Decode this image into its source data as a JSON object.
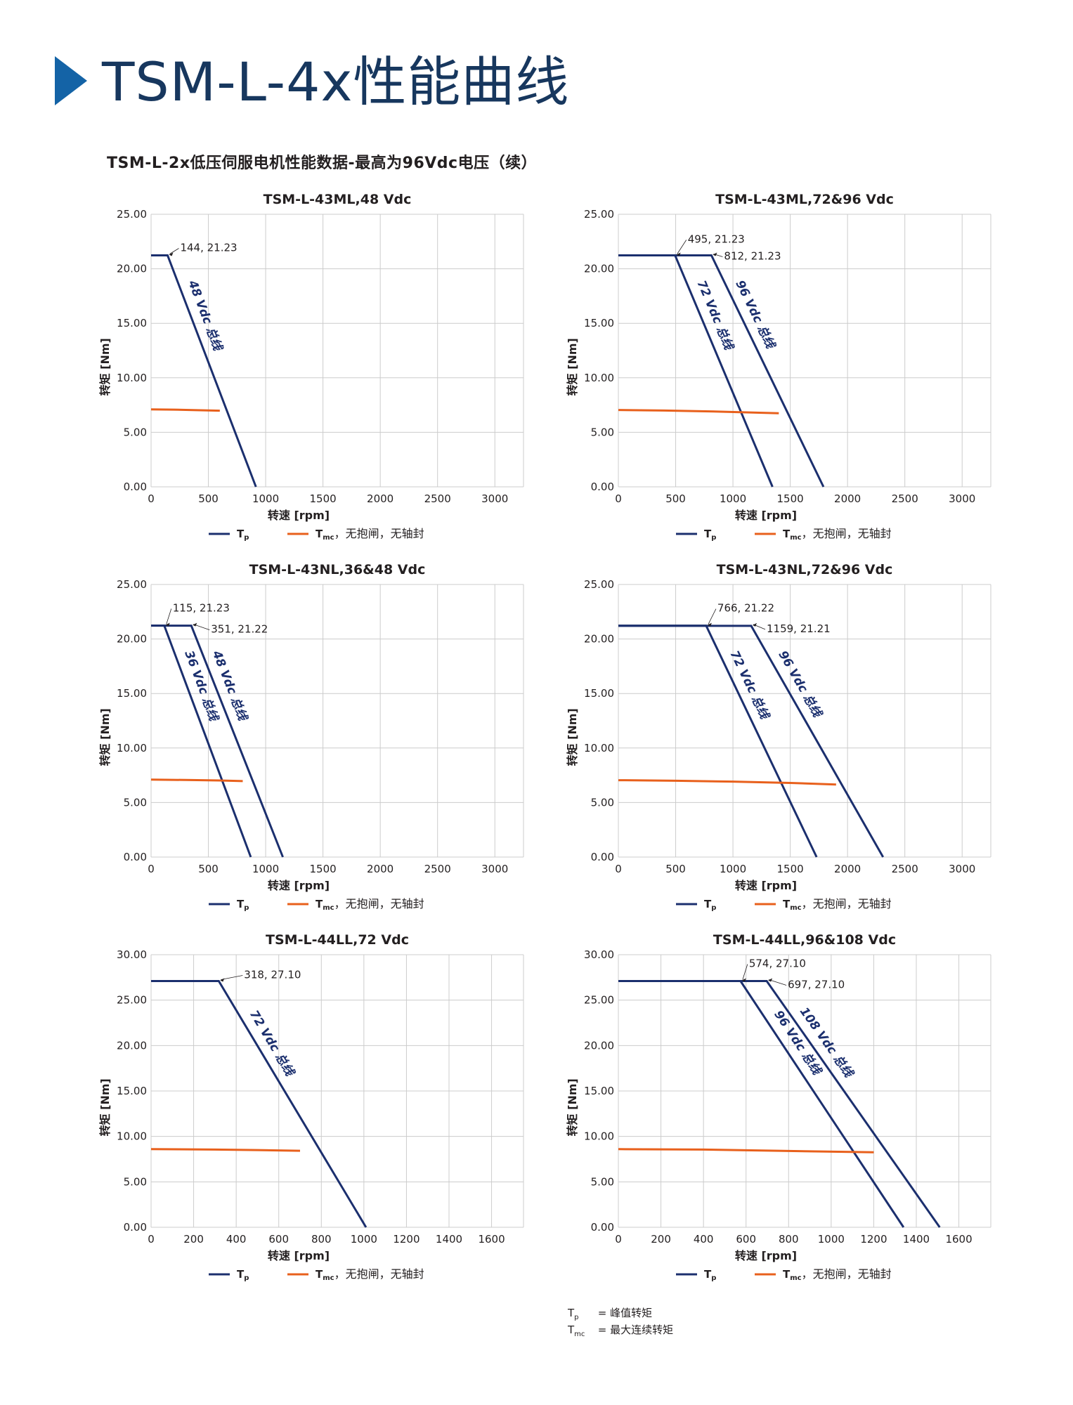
{
  "page": {
    "title": "TSM-L-4x性能曲线",
    "section_title": "TSM-L-2x低压伺服电机性能数据-最高为96Vdc电压（续）"
  },
  "colors": {
    "accent": "#1463a6",
    "tp_line": "#1b2f6e",
    "tmc_line": "#e8601c",
    "grid": "#cccccc"
  },
  "legend": {
    "tp_main": "T",
    "tp_sub": "p",
    "tmc_main": "T",
    "tmc_sub": "mc",
    "tmc_suffix": "，无抱闸，无轴封"
  },
  "footnote": {
    "tp_sym": "T",
    "tp_sub": "p",
    "tp_desc": "= 峰值转矩",
    "tmc_sym": "T",
    "tmc_sub": "mc",
    "tmc_desc": "= 最大连续转矩"
  },
  "chart_data": [
    {
      "type": "line",
      "title": "TSM-L-43ML,48 Vdc",
      "xlabel": "转速 [rpm]",
      "ylabel": "转矩 [Nm]",
      "xlim": [
        0,
        3250
      ],
      "ylim": [
        0,
        25
      ],
      "xticks": [
        0,
        500,
        1000,
        1500,
        2000,
        2500,
        3000
      ],
      "yticks": [
        "0.00",
        "5.00",
        "10.00",
        "15.00",
        "20.00",
        "25.00"
      ],
      "grid": true,
      "series": [
        {
          "kind": "tp",
          "name": "48 Vdc 总线",
          "x": [
            0,
            144,
            915
          ],
          "y": [
            21.23,
            21.23,
            0
          ]
        },
        {
          "kind": "tmc",
          "x": [
            0,
            200,
            400,
            600
          ],
          "y": [
            7.1,
            7.08,
            7.03,
            6.98
          ]
        }
      ],
      "annotations": [
        {
          "text": "144, 21.23",
          "x": 144,
          "y": 21.23
        }
      ]
    },
    {
      "type": "line",
      "title": "TSM-L-43ML,72&96 Vdc",
      "xlabel": "转速 [rpm]",
      "ylabel": "转矩 [Nm]",
      "xlim": [
        0,
        3250
      ],
      "ylim": [
        0,
        25
      ],
      "xticks": [
        0,
        500,
        1000,
        1500,
        2000,
        2500,
        3000
      ],
      "yticks": [
        "0.00",
        "5.00",
        "10.00",
        "15.00",
        "20.00",
        "25.00"
      ],
      "grid": true,
      "series": [
        {
          "kind": "tp",
          "name": "72 Vdc 总线",
          "x": [
            0,
            495,
            1345
          ],
          "y": [
            21.23,
            21.23,
            0
          ]
        },
        {
          "kind": "tp",
          "name": "96 Vdc 总线",
          "x": [
            0,
            812,
            1790
          ],
          "y": [
            21.23,
            21.23,
            0
          ]
        },
        {
          "kind": "tmc",
          "x": [
            0,
            400,
            800,
            1400
          ],
          "y": [
            7.05,
            7.0,
            6.92,
            6.75
          ]
        }
      ],
      "annotations": [
        {
          "text": "495, 21.23",
          "x": 495,
          "y": 21.23
        },
        {
          "text": "812, 21.23",
          "x": 812,
          "y": 21.23
        }
      ]
    },
    {
      "type": "line",
      "title": "TSM-L-43NL,36&48 Vdc",
      "xlabel": "转速 [rpm]",
      "ylabel": "转矩 [Nm]",
      "xlim": [
        0,
        3250
      ],
      "ylim": [
        0,
        25
      ],
      "xticks": [
        0,
        500,
        1000,
        1500,
        2000,
        2500,
        3000
      ],
      "yticks": [
        "0.00",
        "5.00",
        "10.00",
        "15.00",
        "20.00",
        "25.00"
      ],
      "grid": true,
      "series": [
        {
          "kind": "tp",
          "name": "36 Vdc 总线",
          "x": [
            0,
            115,
            870
          ],
          "y": [
            21.23,
            21.23,
            0
          ]
        },
        {
          "kind": "tp",
          "name": "48 Vdc 总线",
          "x": [
            0,
            351,
            1150
          ],
          "y": [
            21.22,
            21.22,
            0
          ]
        },
        {
          "kind": "tmc",
          "x": [
            0,
            300,
            600,
            800
          ],
          "y": [
            7.1,
            7.07,
            7.02,
            6.97
          ]
        }
      ],
      "annotations": [
        {
          "text": "115, 21.23",
          "x": 115,
          "y": 21.23
        },
        {
          "text": "351, 21.22",
          "x": 351,
          "y": 21.22
        }
      ]
    },
    {
      "type": "line",
      "title": "TSM-L-43NL,72&96 Vdc",
      "xlabel": "转速 [rpm]",
      "ylabel": "转矩 [Nm]",
      "xlim": [
        0,
        3250
      ],
      "ylim": [
        0,
        25
      ],
      "xticks": [
        0,
        500,
        1000,
        1500,
        2000,
        2500,
        3000
      ],
      "yticks": [
        "0.00",
        "5.00",
        "10.00",
        "15.00",
        "20.00",
        "25.00"
      ],
      "grid": true,
      "series": [
        {
          "kind": "tp",
          "name": "72 Vdc 总线",
          "x": [
            0,
            766,
            1730
          ],
          "y": [
            21.22,
            21.22,
            0
          ]
        },
        {
          "kind": "tp",
          "name": "96 Vdc 总线",
          "x": [
            0,
            1159,
            2310
          ],
          "y": [
            21.21,
            21.21,
            0
          ]
        },
        {
          "kind": "tmc",
          "x": [
            0,
            500,
            1000,
            1500,
            1900
          ],
          "y": [
            7.05,
            7.0,
            6.92,
            6.8,
            6.65
          ]
        }
      ],
      "annotations": [
        {
          "text": "766, 21.22",
          "x": 766,
          "y": 21.22
        },
        {
          "text": "1159, 21.21",
          "x": 1159,
          "y": 21.21
        }
      ]
    },
    {
      "type": "line",
      "title": "TSM-L-44LL,72 Vdc",
      "xlabel": "转速 [rpm]",
      "ylabel": "转矩 [Nm]",
      "xlim": [
        0,
        1750
      ],
      "ylim": [
        0,
        30
      ],
      "xticks": [
        0,
        200,
        400,
        600,
        800,
        1000,
        1200,
        1400,
        1600
      ],
      "yticks": [
        "0.00",
        "5.00",
        "10.00",
        "15.00",
        "20.00",
        "25.00",
        "30.00"
      ],
      "grid": true,
      "series": [
        {
          "kind": "tp",
          "name": "72 Vdc 总线",
          "x": [
            0,
            318,
            1010
          ],
          "y": [
            27.1,
            27.1,
            0
          ]
        },
        {
          "kind": "tmc",
          "x": [
            0,
            300,
            500,
            700
          ],
          "y": [
            8.6,
            8.55,
            8.5,
            8.42
          ]
        }
      ],
      "annotations": [
        {
          "text": "318, 27.10",
          "x": 318,
          "y": 27.1
        }
      ]
    },
    {
      "type": "line",
      "title": "TSM-L-44LL,96&108 Vdc",
      "xlabel": "转速 [rpm]",
      "ylabel": "转矩 [Nm]",
      "xlim": [
        0,
        1750
      ],
      "ylim": [
        0,
        30
      ],
      "xticks": [
        0,
        200,
        400,
        600,
        800,
        1000,
        1200,
        1400,
        1600
      ],
      "yticks": [
        "0.00",
        "5.00",
        "10.00",
        "15.00",
        "20.00",
        "25.00",
        "30.00"
      ],
      "grid": true,
      "series": [
        {
          "kind": "tp",
          "name": "96 Vdc 总线",
          "x": [
            0,
            574,
            1340
          ],
          "y": [
            27.1,
            27.1,
            0
          ]
        },
        {
          "kind": "tp",
          "name": "108 Vdc 总线",
          "x": [
            0,
            697,
            1510
          ],
          "y": [
            27.1,
            27.1,
            0
          ]
        },
        {
          "kind": "tmc",
          "x": [
            0,
            400,
            800,
            1200
          ],
          "y": [
            8.6,
            8.55,
            8.4,
            8.25
          ]
        }
      ],
      "annotations": [
        {
          "text": "574, 27.10",
          "x": 574,
          "y": 27.1
        },
        {
          "text": "697, 27.10",
          "x": 697,
          "y": 27.1
        }
      ]
    }
  ]
}
